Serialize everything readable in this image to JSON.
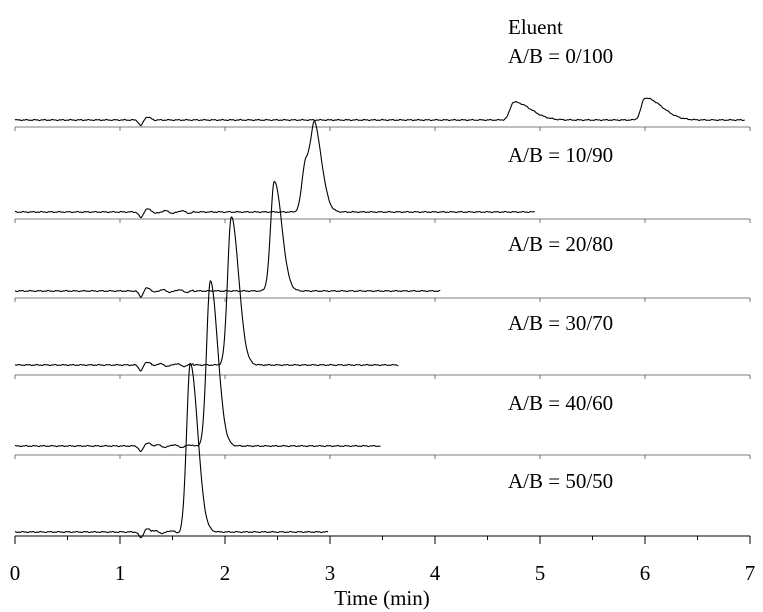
{
  "chart_data": {
    "type": "line",
    "title": "",
    "xlabel": "Time (min)",
    "ylabel": "",
    "xlim": [
      0,
      7
    ],
    "xticks": [
      "0",
      "1",
      "2",
      "3",
      "4",
      "5",
      "6",
      "7"
    ],
    "legend_header": "Eluent",
    "grid": false,
    "series": [
      {
        "name": "A/B = 0/100",
        "end": 6.95,
        "peaks": [
          {
            "t": 4.75,
            "h": 18
          },
          {
            "t": 6.0,
            "h": 22
          }
        ],
        "dip": 1.2
      },
      {
        "name": "A/B = 10/90",
        "end": 4.95,
        "peaks": [
          {
            "t": 2.77,
            "h": 52
          },
          {
            "t": 2.86,
            "h": 67
          }
        ],
        "dip": 1.2
      },
      {
        "name": "A/B = 20/80",
        "end": 4.05,
        "peaks": [
          {
            "t": 2.47,
            "h": 110
          }
        ],
        "dip": 1.2
      },
      {
        "name": "A/B = 30/70",
        "end": 3.65,
        "peaks": [
          {
            "t": 2.06,
            "h": 148
          }
        ],
        "dip": 1.2
      },
      {
        "name": "A/B = 40/60",
        "end": 3.48,
        "peaks": [
          {
            "t": 1.86,
            "h": 165
          }
        ],
        "dip": 1.2
      },
      {
        "name": "A/B = 50/50",
        "end": 2.98,
        "peaks": [
          {
            "t": 1.67,
            "h": 168
          }
        ],
        "dip": 1.2
      }
    ]
  }
}
